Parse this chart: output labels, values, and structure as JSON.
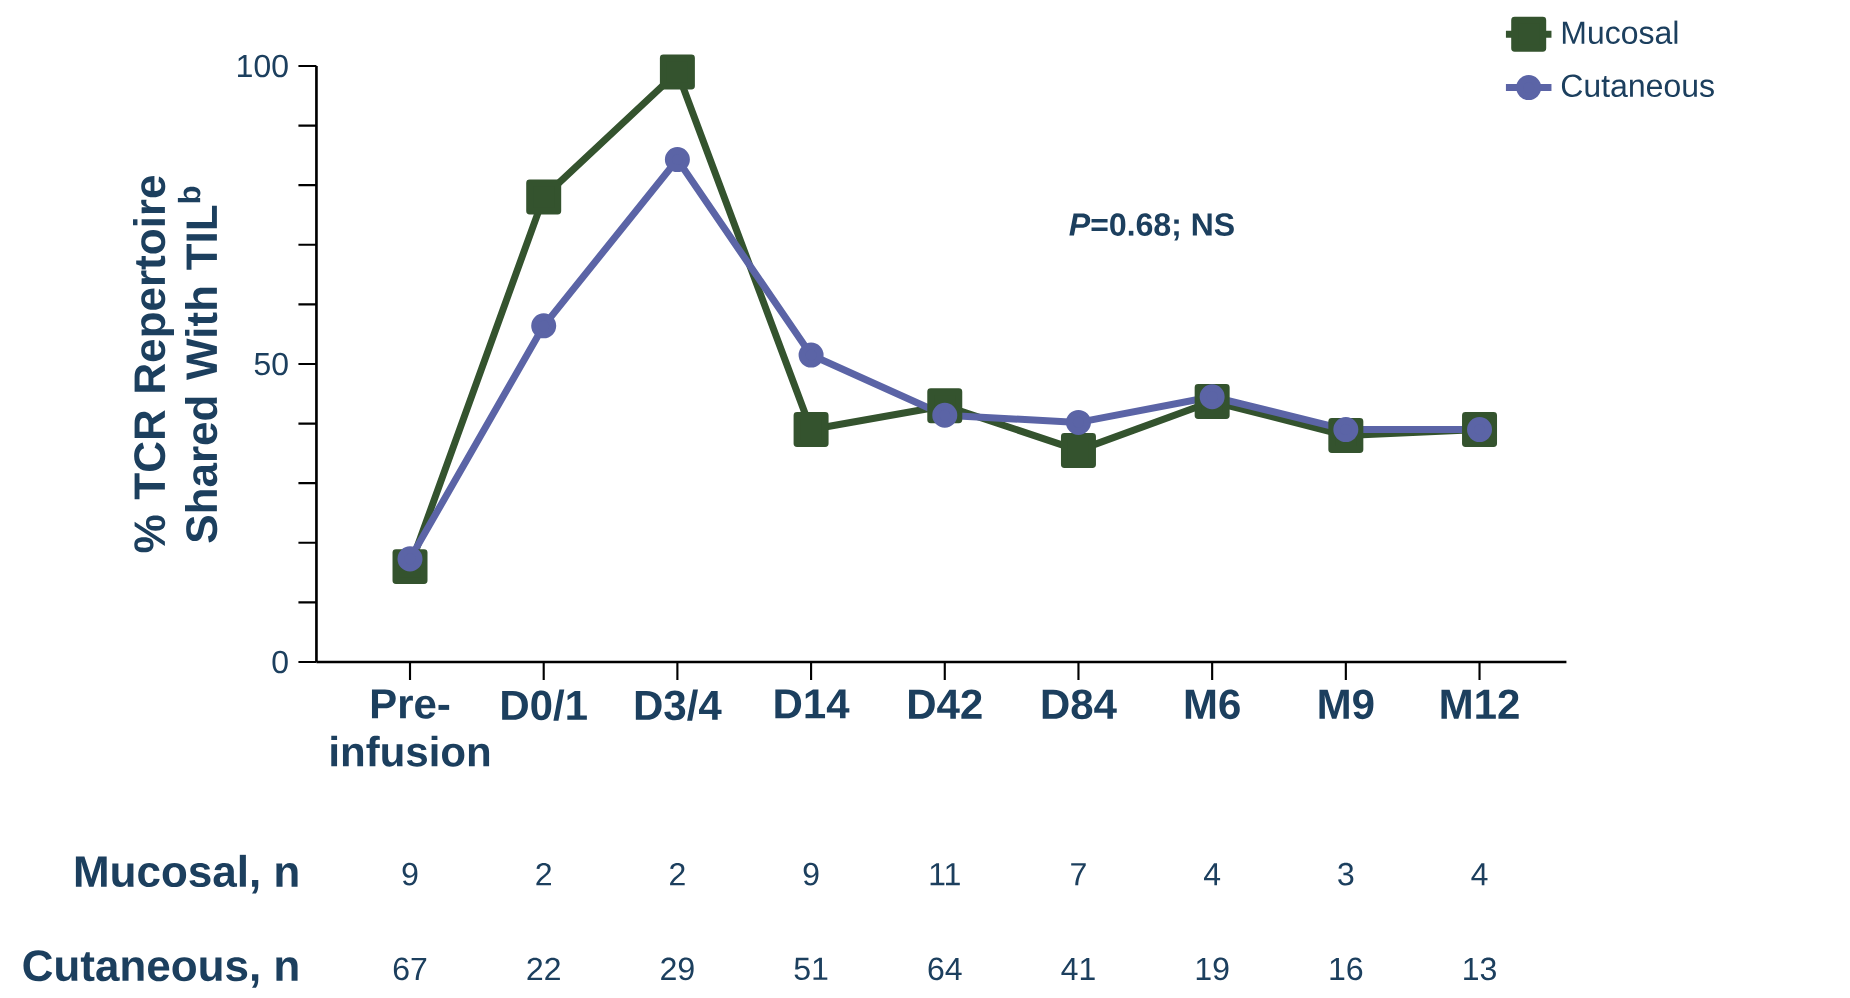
{
  "chart_data": {
    "type": "line",
    "ylabel": "% TCR Repertoire Shared With TIL$^{b}$",
    "categories": [
      "Pre-infusion",
      "D0/1",
      "D3/4",
      "D14",
      "D42",
      "D84",
      "M6",
      "M9",
      "M12"
    ],
    "series": [
      {
        "name": "Mucosal",
        "color": "#34532e",
        "marker": "square",
        "values": [
          16,
          78,
          99,
          39,
          43,
          35.5,
          43.7,
          38,
          39
        ]
      },
      {
        "name": "Cutaneous",
        "color": "#5b64a6",
        "marker": "circle",
        "values": [
          17.3,
          56.4,
          84.3,
          51.5,
          41.4,
          40.2,
          44.5,
          39,
          39
        ]
      }
    ],
    "ylim": [
      0,
      100
    ],
    "yticks": [
      0,
      50,
      100
    ],
    "grid": false,
    "legend": "top right",
    "line_style": "solid",
    "annotations": [
      "*P*=0.68; NS",
      "Mucosal, n",
      "9",
      "2",
      "2",
      "9",
      "11",
      "7",
      "4",
      "3",
      "4",
      "Cutaneous, n",
      "67",
      "22",
      "29",
      "51",
      "64",
      "41",
      "19",
      "16",
      "13"
    ]
  }
}
